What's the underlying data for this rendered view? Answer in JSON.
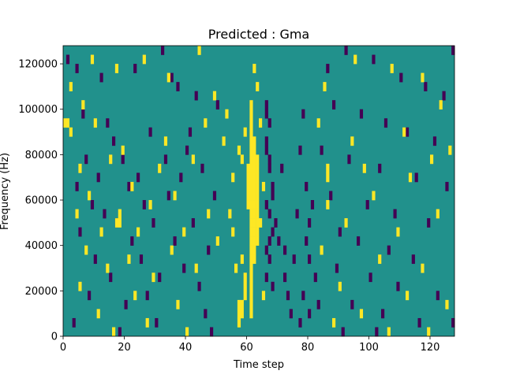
{
  "chart_data": {
    "type": "heatmap",
    "title": "Predicted : Gma",
    "xlabel": "Time step",
    "ylabel": "Frequency (Hz)",
    "xlim": [
      0,
      128
    ],
    "ylim": [
      0,
      128000
    ],
    "xticks": [
      0,
      20,
      40,
      60,
      80,
      100,
      120
    ],
    "yticks": [
      0,
      20000,
      40000,
      60000,
      80000,
      100000,
      120000
    ],
    "grid": false,
    "legend": "none",
    "n_time_steps": 128,
    "n_freq_bins": 32,
    "colors": {
      "background": "#21918c",
      "high": "#fde725",
      "low": "#440154"
    },
    "cells_note_units": "x = time step index, y = frequency bin index (0..31), v = class",
    "cells": [
      {
        "x": 61,
        "y": 2,
        "v": "high"
      },
      {
        "x": 61,
        "y": 3,
        "v": "high"
      },
      {
        "x": 61,
        "y": 4,
        "v": "high"
      },
      {
        "x": 61,
        "y": 5,
        "v": "high"
      },
      {
        "x": 61,
        "y": 6,
        "v": "high"
      },
      {
        "x": 61,
        "y": 7,
        "v": "high"
      },
      {
        "x": 61,
        "y": 8,
        "v": "high"
      },
      {
        "x": 61,
        "y": 9,
        "v": "high"
      },
      {
        "x": 61,
        "y": 10,
        "v": "high"
      },
      {
        "x": 61,
        "y": 11,
        "v": "high"
      },
      {
        "x": 61,
        "y": 12,
        "v": "high"
      },
      {
        "x": 61,
        "y": 13,
        "v": "high"
      },
      {
        "x": 61,
        "y": 14,
        "v": "high"
      },
      {
        "x": 61,
        "y": 15,
        "v": "high"
      },
      {
        "x": 61,
        "y": 16,
        "v": "high"
      },
      {
        "x": 61,
        "y": 17,
        "v": "high"
      },
      {
        "x": 61,
        "y": 18,
        "v": "high"
      },
      {
        "x": 61,
        "y": 19,
        "v": "high"
      },
      {
        "x": 61,
        "y": 20,
        "v": "high"
      },
      {
        "x": 61,
        "y": 21,
        "v": "high"
      },
      {
        "x": 61,
        "y": 22,
        "v": "high"
      },
      {
        "x": 61,
        "y": 23,
        "v": "high"
      },
      {
        "x": 61,
        "y": 24,
        "v": "high"
      },
      {
        "x": 61,
        "y": 25,
        "v": "high"
      },
      {
        "x": 62,
        "y": 8,
        "v": "high"
      },
      {
        "x": 62,
        "y": 9,
        "v": "high"
      },
      {
        "x": 62,
        "y": 10,
        "v": "high"
      },
      {
        "x": 62,
        "y": 11,
        "v": "high"
      },
      {
        "x": 62,
        "y": 12,
        "v": "high"
      },
      {
        "x": 62,
        "y": 13,
        "v": "high"
      },
      {
        "x": 62,
        "y": 14,
        "v": "high"
      },
      {
        "x": 62,
        "y": 15,
        "v": "high"
      },
      {
        "x": 62,
        "y": 16,
        "v": "high"
      },
      {
        "x": 62,
        "y": 17,
        "v": "high"
      },
      {
        "x": 62,
        "y": 18,
        "v": "high"
      },
      {
        "x": 62,
        "y": 19,
        "v": "high"
      },
      {
        "x": 62,
        "y": 20,
        "v": "high"
      },
      {
        "x": 62,
        "y": 21,
        "v": "high"
      },
      {
        "x": 63,
        "y": 10,
        "v": "high"
      },
      {
        "x": 63,
        "y": 11,
        "v": "high"
      },
      {
        "x": 63,
        "y": 12,
        "v": "high"
      },
      {
        "x": 63,
        "y": 13,
        "v": "high"
      },
      {
        "x": 63,
        "y": 14,
        "v": "high"
      },
      {
        "x": 63,
        "y": 15,
        "v": "high"
      },
      {
        "x": 63,
        "y": 16,
        "v": "high"
      },
      {
        "x": 63,
        "y": 17,
        "v": "high"
      },
      {
        "x": 63,
        "y": 18,
        "v": "high"
      },
      {
        "x": 63,
        "y": 19,
        "v": "high"
      },
      {
        "x": 60,
        "y": 14,
        "v": "high"
      },
      {
        "x": 60,
        "y": 15,
        "v": "high"
      },
      {
        "x": 60,
        "y": 16,
        "v": "high"
      },
      {
        "x": 60,
        "y": 17,
        "v": "high"
      },
      {
        "x": 60,
        "y": 18,
        "v": "high"
      },
      {
        "x": 59,
        "y": 4,
        "v": "high"
      },
      {
        "x": 59,
        "y": 5,
        "v": "high"
      },
      {
        "x": 59,
        "y": 6,
        "v": "high"
      },
      {
        "x": 58,
        "y": 2,
        "v": "high"
      },
      {
        "x": 58,
        "y": 3,
        "v": "high"
      },
      {
        "x": 58,
        "y": 8,
        "v": "high"
      },
      {
        "x": 57,
        "y": 1,
        "v": "high"
      },
      {
        "x": 57,
        "y": 2,
        "v": "high"
      },
      {
        "x": 57,
        "y": 3,
        "v": "high"
      },
      {
        "x": 56,
        "y": 7,
        "v": "high"
      },
      {
        "x": 55,
        "y": 11,
        "v": "high"
      },
      {
        "x": 54,
        "y": 13,
        "v": "high"
      },
      {
        "x": 62,
        "y": 29,
        "v": "high"
      },
      {
        "x": 63,
        "y": 27,
        "v": "high"
      },
      {
        "x": 64,
        "y": 23,
        "v": "high"
      },
      {
        "x": 65,
        "y": 16,
        "v": "high"
      },
      {
        "x": 64,
        "y": 12,
        "v": "high"
      },
      {
        "x": 65,
        "y": 4,
        "v": "high"
      },
      {
        "x": 59,
        "y": 22,
        "v": "high"
      },
      {
        "x": 58,
        "y": 19,
        "v": "high"
      },
      {
        "x": 66,
        "y": 21,
        "v": "low"
      },
      {
        "x": 66,
        "y": 20,
        "v": "low"
      },
      {
        "x": 67,
        "y": 19,
        "v": "low"
      },
      {
        "x": 67,
        "y": 18,
        "v": "low"
      },
      {
        "x": 68,
        "y": 16,
        "v": "low"
      },
      {
        "x": 68,
        "y": 15,
        "v": "low"
      },
      {
        "x": 66,
        "y": 14,
        "v": "low"
      },
      {
        "x": 67,
        "y": 13,
        "v": "low"
      },
      {
        "x": 68,
        "y": 11,
        "v": "low"
      },
      {
        "x": 67,
        "y": 10,
        "v": "low"
      },
      {
        "x": 66,
        "y": 9,
        "v": "low"
      },
      {
        "x": 67,
        "y": 8,
        "v": "low"
      },
      {
        "x": 66,
        "y": 6,
        "v": "low"
      },
      {
        "x": 68,
        "y": 5,
        "v": "low"
      },
      {
        "x": 66,
        "y": 24,
        "v": "low"
      },
      {
        "x": 67,
        "y": 23,
        "v": "low"
      },
      {
        "x": 66,
        "y": 25,
        "v": "low"
      },
      {
        "x": 69,
        "y": 12,
        "v": "low"
      },
      {
        "x": 70,
        "y": 10,
        "v": "low"
      },
      {
        "x": 71,
        "y": 18,
        "v": "low"
      },
      {
        "x": 72,
        "y": 6,
        "v": "low"
      },
      {
        "x": 73,
        "y": 4,
        "v": "low"
      },
      {
        "x": 74,
        "y": 2,
        "v": "low"
      },
      {
        "x": 72,
        "y": 9,
        "v": "low"
      },
      {
        "x": 75,
        "y": 8,
        "v": "low"
      },
      {
        "x": 76,
        "y": 13,
        "v": "low"
      },
      {
        "x": 77,
        "y": 20,
        "v": "low"
      },
      {
        "x": 78,
        "y": 24,
        "v": "low"
      },
      {
        "x": 79,
        "y": 16,
        "v": "low"
      },
      {
        "x": 80,
        "y": 8,
        "v": "low"
      },
      {
        "x": 81,
        "y": 14,
        "v": "low"
      },
      {
        "x": 82,
        "y": 6,
        "v": "low"
      },
      {
        "x": 83,
        "y": 3,
        "v": "low"
      },
      {
        "x": 79,
        "y": 10,
        "v": "low"
      },
      {
        "x": 80,
        "y": 12,
        "v": "low"
      },
      {
        "x": 78,
        "y": 4,
        "v": "low"
      },
      {
        "x": 77,
        "y": 1,
        "v": "low"
      },
      {
        "x": 80,
        "y": 2,
        "v": "low"
      },
      {
        "x": 1,
        "y": 30,
        "v": "low"
      },
      {
        "x": 4,
        "y": 29,
        "v": "low"
      },
      {
        "x": 12,
        "y": 28,
        "v": "low"
      },
      {
        "x": 23,
        "y": 29,
        "v": "low"
      },
      {
        "x": 32,
        "y": 31,
        "v": "low"
      },
      {
        "x": 35,
        "y": 28,
        "v": "low"
      },
      {
        "x": 37,
        "y": 27,
        "v": "low"
      },
      {
        "x": 43,
        "y": 26,
        "v": "low"
      },
      {
        "x": 50,
        "y": 25,
        "v": "low"
      },
      {
        "x": 6,
        "y": 24,
        "v": "low"
      },
      {
        "x": 14,
        "y": 23,
        "v": "low"
      },
      {
        "x": 28,
        "y": 22,
        "v": "low"
      },
      {
        "x": 41,
        "y": 22,
        "v": "low"
      },
      {
        "x": 16,
        "y": 21,
        "v": "low"
      },
      {
        "x": 40,
        "y": 20,
        "v": "low"
      },
      {
        "x": 7,
        "y": 19,
        "v": "low"
      },
      {
        "x": 19,
        "y": 19,
        "v": "low"
      },
      {
        "x": 33,
        "y": 19,
        "v": "low"
      },
      {
        "x": 45,
        "y": 18,
        "v": "low"
      },
      {
        "x": 11,
        "y": 17,
        "v": "low"
      },
      {
        "x": 24,
        "y": 17,
        "v": "low"
      },
      {
        "x": 38,
        "y": 17,
        "v": "low"
      },
      {
        "x": 4,
        "y": 16,
        "v": "low"
      },
      {
        "x": 21,
        "y": 16,
        "v": "low"
      },
      {
        "x": 34,
        "y": 15,
        "v": "low"
      },
      {
        "x": 49,
        "y": 15,
        "v": "low"
      },
      {
        "x": 9,
        "y": 14,
        "v": "low"
      },
      {
        "x": 26,
        "y": 14,
        "v": "low"
      },
      {
        "x": 13,
        "y": 13,
        "v": "low"
      },
      {
        "x": 17,
        "y": 12,
        "v": "low"
      },
      {
        "x": 29,
        "y": 12,
        "v": "low"
      },
      {
        "x": 42,
        "y": 12,
        "v": "low"
      },
      {
        "x": 5,
        "y": 11,
        "v": "low"
      },
      {
        "x": 22,
        "y": 10,
        "v": "low"
      },
      {
        "x": 36,
        "y": 10,
        "v": "low"
      },
      {
        "x": 47,
        "y": 9,
        "v": "low"
      },
      {
        "x": 10,
        "y": 8,
        "v": "low"
      },
      {
        "x": 25,
        "y": 8,
        "v": "low"
      },
      {
        "x": 39,
        "y": 7,
        "v": "low"
      },
      {
        "x": 15,
        "y": 6,
        "v": "low"
      },
      {
        "x": 31,
        "y": 6,
        "v": "low"
      },
      {
        "x": 44,
        "y": 5,
        "v": "low"
      },
      {
        "x": 8,
        "y": 4,
        "v": "low"
      },
      {
        "x": 27,
        "y": 4,
        "v": "low"
      },
      {
        "x": 20,
        "y": 3,
        "v": "low"
      },
      {
        "x": 46,
        "y": 2,
        "v": "low"
      },
      {
        "x": 3,
        "y": 1,
        "v": "low"
      },
      {
        "x": 30,
        "y": 1,
        "v": "low"
      },
      {
        "x": 18,
        "y": 0,
        "v": "low"
      },
      {
        "x": 48,
        "y": 0,
        "v": "low"
      },
      {
        "x": 86,
        "y": 29,
        "v": "low"
      },
      {
        "x": 92,
        "y": 31,
        "v": "low"
      },
      {
        "x": 101,
        "y": 30,
        "v": "low"
      },
      {
        "x": 110,
        "y": 28,
        "v": "low"
      },
      {
        "x": 118,
        "y": 27,
        "v": "low"
      },
      {
        "x": 124,
        "y": 26,
        "v": "low"
      },
      {
        "x": 127,
        "y": 31,
        "v": "low"
      },
      {
        "x": 88,
        "y": 25,
        "v": "low"
      },
      {
        "x": 97,
        "y": 24,
        "v": "low"
      },
      {
        "x": 105,
        "y": 23,
        "v": "low"
      },
      {
        "x": 112,
        "y": 22,
        "v": "low"
      },
      {
        "x": 121,
        "y": 21,
        "v": "low"
      },
      {
        "x": 84,
        "y": 20,
        "v": "low"
      },
      {
        "x": 93,
        "y": 19,
        "v": "low"
      },
      {
        "x": 103,
        "y": 18,
        "v": "low"
      },
      {
        "x": 115,
        "y": 17,
        "v": "low"
      },
      {
        "x": 125,
        "y": 16,
        "v": "low"
      },
      {
        "x": 87,
        "y": 15,
        "v": "low"
      },
      {
        "x": 99,
        "y": 14,
        "v": "low"
      },
      {
        "x": 108,
        "y": 13,
        "v": "low"
      },
      {
        "x": 119,
        "y": 12,
        "v": "low"
      },
      {
        "x": 90,
        "y": 11,
        "v": "low"
      },
      {
        "x": 96,
        "y": 10,
        "v": "low"
      },
      {
        "x": 106,
        "y": 9,
        "v": "low"
      },
      {
        "x": 114,
        "y": 8,
        "v": "low"
      },
      {
        "x": 89,
        "y": 7,
        "v": "low"
      },
      {
        "x": 100,
        "y": 6,
        "v": "low"
      },
      {
        "x": 109,
        "y": 5,
        "v": "low"
      },
      {
        "x": 122,
        "y": 4,
        "v": "low"
      },
      {
        "x": 94,
        "y": 3,
        "v": "low"
      },
      {
        "x": 104,
        "y": 2,
        "v": "low"
      },
      {
        "x": 116,
        "y": 1,
        "v": "low"
      },
      {
        "x": 127,
        "y": 1,
        "v": "low"
      },
      {
        "x": 91,
        "y": 0,
        "v": "low"
      },
      {
        "x": 102,
        "y": 0,
        "v": "low"
      },
      {
        "x": 2,
        "y": 27,
        "v": "high"
      },
      {
        "x": 6,
        "y": 25,
        "v": "high"
      },
      {
        "x": 9,
        "y": 30,
        "v": "high"
      },
      {
        "x": 17,
        "y": 29,
        "v": "high"
      },
      {
        "x": 26,
        "y": 30,
        "v": "high"
      },
      {
        "x": 34,
        "y": 28,
        "v": "high"
      },
      {
        "x": 44,
        "y": 31,
        "v": "high"
      },
      {
        "x": 49,
        "y": 26,
        "v": "high"
      },
      {
        "x": 53,
        "y": 24,
        "v": "high"
      },
      {
        "x": 2,
        "y": 22,
        "v": "high"
      },
      {
        "x": 10,
        "y": 23,
        "v": "high"
      },
      {
        "x": 19,
        "y": 20,
        "v": "high"
      },
      {
        "x": 33,
        "y": 21,
        "v": "high"
      },
      {
        "x": 46,
        "y": 23,
        "v": "high"
      },
      {
        "x": 52,
        "y": 21,
        "v": "high"
      },
      {
        "x": 5,
        "y": 18,
        "v": "high"
      },
      {
        "x": 15,
        "y": 19,
        "v": "high"
      },
      {
        "x": 31,
        "y": 18,
        "v": "high"
      },
      {
        "x": 42,
        "y": 19,
        "v": "high"
      },
      {
        "x": 57,
        "y": 20,
        "v": "high"
      },
      {
        "x": 8,
        "y": 15,
        "v": "high"
      },
      {
        "x": 22,
        "y": 16,
        "v": "high"
      },
      {
        "x": 36,
        "y": 15,
        "v": "high"
      },
      {
        "x": 55,
        "y": 17,
        "v": "high"
      },
      {
        "x": 4,
        "y": 13,
        "v": "high"
      },
      {
        "x": 18,
        "y": 13,
        "v": "high"
      },
      {
        "x": 28,
        "y": 14,
        "v": "high"
      },
      {
        "x": 47,
        "y": 13,
        "v": "high"
      },
      {
        "x": 12,
        "y": 11,
        "v": "high"
      },
      {
        "x": 24,
        "y": 11,
        "v": "high"
      },
      {
        "x": 39,
        "y": 11,
        "v": "high"
      },
      {
        "x": 7,
        "y": 9,
        "v": "high"
      },
      {
        "x": 21,
        "y": 8,
        "v": "high"
      },
      {
        "x": 35,
        "y": 9,
        "v": "high"
      },
      {
        "x": 50,
        "y": 10,
        "v": "high"
      },
      {
        "x": 14,
        "y": 7,
        "v": "high"
      },
      {
        "x": 29,
        "y": 6,
        "v": "high"
      },
      {
        "x": 43,
        "y": 7,
        "v": "high"
      },
      {
        "x": 5,
        "y": 5,
        "v": "high"
      },
      {
        "x": 23,
        "y": 4,
        "v": "high"
      },
      {
        "x": 37,
        "y": 3,
        "v": "high"
      },
      {
        "x": 11,
        "y": 2,
        "v": "high"
      },
      {
        "x": 27,
        "y": 1,
        "v": "high"
      },
      {
        "x": 40,
        "y": 0,
        "v": "high"
      },
      {
        "x": 16,
        "y": 0,
        "v": "high"
      },
      {
        "x": 85,
        "y": 27,
        "v": "high"
      },
      {
        "x": 95,
        "y": 30,
        "v": "high"
      },
      {
        "x": 107,
        "y": 29,
        "v": "high"
      },
      {
        "x": 117,
        "y": 28,
        "v": "high"
      },
      {
        "x": 123,
        "y": 25,
        "v": "high"
      },
      {
        "x": 83,
        "y": 23,
        "v": "high"
      },
      {
        "x": 94,
        "y": 21,
        "v": "high"
      },
      {
        "x": 111,
        "y": 22,
        "v": "high"
      },
      {
        "x": 126,
        "y": 20,
        "v": "high"
      },
      {
        "x": 98,
        "y": 18,
        "v": "high"
      },
      {
        "x": 113,
        "y": 17,
        "v": "high"
      },
      {
        "x": 120,
        "y": 19,
        "v": "high"
      },
      {
        "x": 86,
        "y": 14,
        "v": "high"
      },
      {
        "x": 101,
        "y": 15,
        "v": "high"
      },
      {
        "x": 122,
        "y": 13,
        "v": "high"
      },
      {
        "x": 92,
        "y": 12,
        "v": "high"
      },
      {
        "x": 109,
        "y": 11,
        "v": "high"
      },
      {
        "x": 84,
        "y": 9,
        "v": "high"
      },
      {
        "x": 103,
        "y": 8,
        "v": "high"
      },
      {
        "x": 117,
        "y": 7,
        "v": "high"
      },
      {
        "x": 90,
        "y": 5,
        "v": "high"
      },
      {
        "x": 112,
        "y": 4,
        "v": "high"
      },
      {
        "x": 125,
        "y": 3,
        "v": "high"
      },
      {
        "x": 97,
        "y": 2,
        "v": "high"
      },
      {
        "x": 106,
        "y": 0,
        "v": "high"
      },
      {
        "x": 88,
        "y": 1,
        "v": "high"
      },
      {
        "x": 119,
        "y": 0,
        "v": "high"
      },
      {
        "x": 0,
        "y": 23,
        "v": "high"
      },
      {
        "x": 1,
        "y": 23,
        "v": "high"
      },
      {
        "x": 17,
        "y": 12,
        "v": "high"
      },
      {
        "x": 18,
        "y": 12,
        "v": "high"
      },
      {
        "x": 86,
        "y": 17,
        "v": "high"
      },
      {
        "x": 86,
        "y": 18,
        "v": "high"
      }
    ]
  }
}
